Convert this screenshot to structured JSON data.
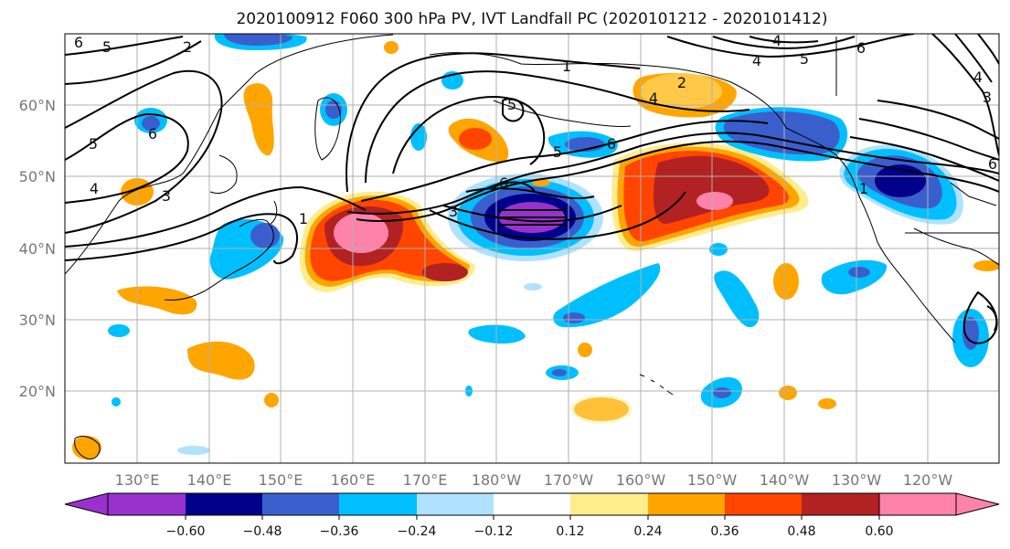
{
  "title": "2020100912 F060 300 hPa PV, IVT Landfall PC (2020101212 - 2020101412)",
  "lat_labels": [
    "60°N",
    "50°N",
    "40°N",
    "30°N",
    "20°N"
  ],
  "lon_labels": [
    "130°E",
    "140°E",
    "150°E",
    "160°E",
    "170°E",
    "180°W",
    "170°W",
    "160°W",
    "150°W",
    "140°W",
    "130°W",
    "120°W"
  ],
  "colorbar": {
    "ticks": [
      "−0.60",
      "−0.48",
      "−0.36",
      "−0.24",
      "−0.12",
      "0.12",
      "0.24",
      "0.36",
      "0.48",
      "0.60"
    ],
    "colors": [
      "#9932CC",
      "#00008B",
      "#3A5FCD",
      "#00BFFF",
      "#B0E2FF",
      "#FFFFFF",
      "#FFEC8B",
      "#FFA500",
      "#FF4500",
      "#B22222",
      "#FF82AB"
    ]
  },
  "contour_labels": [
    "6",
    "5",
    "2",
    "5",
    "6",
    "4",
    "3",
    "1",
    "1",
    "4",
    "5",
    "3",
    "6",
    "6",
    "5",
    "4",
    "4",
    "5",
    "6",
    "3",
    "1",
    "6",
    "2",
    "4"
  ],
  "style": {
    "blue_dark": "#00008B",
    "blue_mid": "#3A5FCD",
    "blue_light": "#00BFFF",
    "blue_pale": "#B0E2FF",
    "yellow": "#FFEC8B",
    "orange": "#FFA500",
    "red_orange": "#FF4500",
    "dark_red": "#B22222",
    "pink": "#FF82AB",
    "purple": "#9932CC",
    "grid": "#b0b0b0"
  }
}
